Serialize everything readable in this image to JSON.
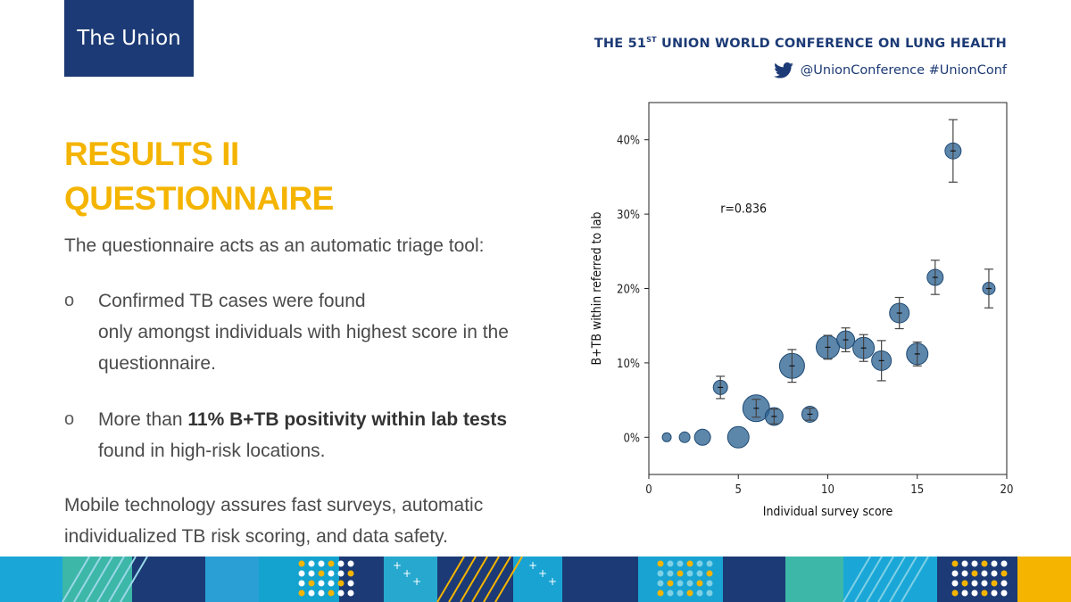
{
  "header": {
    "logo_text": "The Union",
    "conference_prefix": "THE 51",
    "conference_sup": "ST",
    "conference_suffix": " UNION WORLD CONFERENCE ON LUNG HEALTH",
    "social": "@UnionConference #UnionConf",
    "twitter_icon": "twitter-bird-icon",
    "brand_color": "#1c3a75"
  },
  "heading": {
    "line1": "RESULTS II",
    "line2": "QUESTIONNAIRE",
    "color": "#f4b400"
  },
  "content": {
    "intro": "The questionnaire acts as an automatic triage tool:",
    "bullet1": {
      "marker": "o",
      "line1": "Confirmed TB cases were found",
      "line2": "only amongst  individuals with highest score in the questionnaire."
    },
    "bullet2": {
      "marker": "o",
      "prefix": "More than ",
      "bold": "11% B+TB positivity within lab tests",
      "suffix": "found in high-risk locations."
    },
    "closing": "Mobile technology assures fast surveys, automatic individualized TB risk scoring, and data safety."
  },
  "chart_data": {
    "type": "scatter",
    "title": "",
    "xlabel": "Individual survey score",
    "ylabel": "B+TB within referred to lab",
    "xlim": [
      0,
      20
    ],
    "ylim": [
      -5,
      45
    ],
    "xticks": [
      0,
      5,
      10,
      15,
      20
    ],
    "yticks": [
      0,
      10,
      20,
      30,
      40
    ],
    "ytick_labels": [
      "0%",
      "10%",
      "20%",
      "30%",
      "40%"
    ],
    "annotation": "r=0.836",
    "grid": false,
    "marker_color": "#2f6494",
    "points": [
      {
        "x": 1,
        "y": 0,
        "size": 5,
        "err": 0
      },
      {
        "x": 2,
        "y": 0,
        "size": 6,
        "err": 0
      },
      {
        "x": 3,
        "y": 0,
        "size": 9,
        "err": 0
      },
      {
        "x": 4,
        "y": 6.7,
        "size": 8,
        "err": 1.5
      },
      {
        "x": 5,
        "y": 0,
        "size": 12,
        "err": 0
      },
      {
        "x": 6,
        "y": 3.9,
        "size": 15,
        "err": 1.2
      },
      {
        "x": 7,
        "y": 2.8,
        "size": 10,
        "err": 1.0
      },
      {
        "x": 8,
        "y": 9.6,
        "size": 14,
        "err": 2.2
      },
      {
        "x": 9,
        "y": 3.1,
        "size": 9,
        "err": 0.8
      },
      {
        "x": 10,
        "y": 12.1,
        "size": 13,
        "err": 1.6
      },
      {
        "x": 11,
        "y": 13.1,
        "size": 10,
        "err": 1.6
      },
      {
        "x": 12,
        "y": 12.0,
        "size": 12,
        "err": 1.8
      },
      {
        "x": 13,
        "y": 10.3,
        "size": 11,
        "err": 2.7
      },
      {
        "x": 14,
        "y": 16.7,
        "size": 11,
        "err": 2.1
      },
      {
        "x": 15,
        "y": 11.2,
        "size": 12,
        "err": 1.6
      },
      {
        "x": 16,
        "y": 21.5,
        "size": 9,
        "err": 2.3
      },
      {
        "x": 17,
        "y": 38.5,
        "size": 9,
        "err": 4.2
      },
      {
        "x": 19,
        "y": 20.0,
        "size": 7,
        "err": 2.6
      }
    ]
  }
}
